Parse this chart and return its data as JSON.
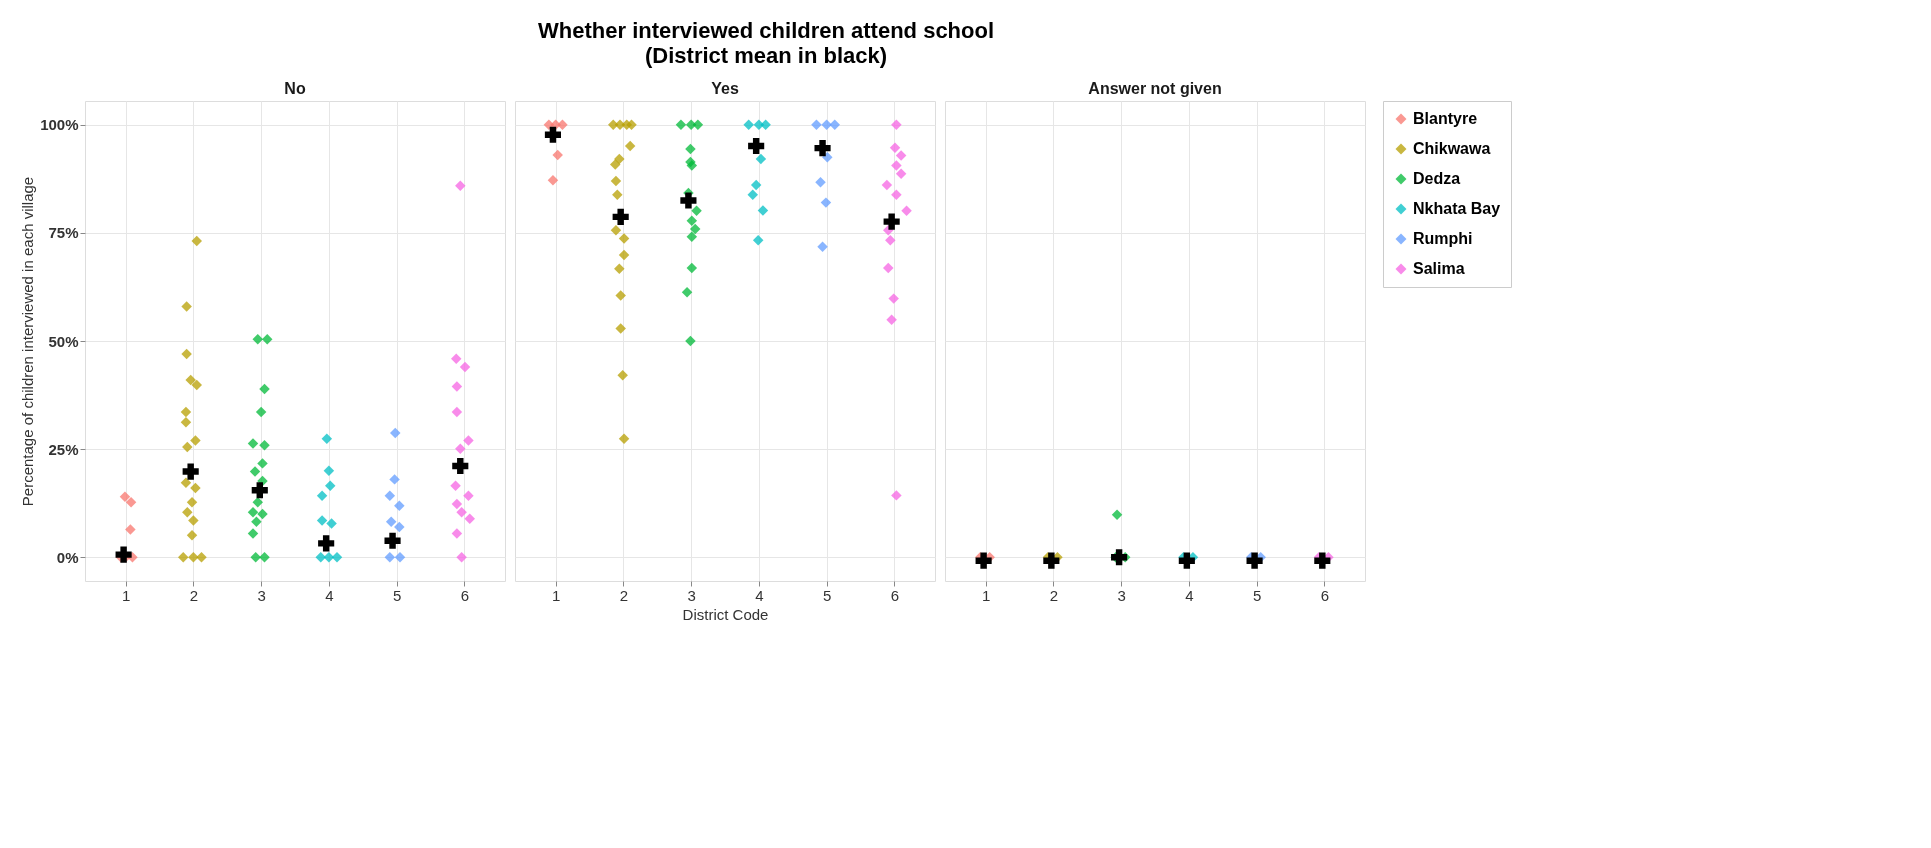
{
  "chart_data": [
    {
      "type": "scatter",
      "title": "No",
      "annotations": [
        "Whether interviewed children attend school",
        "(District mean in black)"
      ],
      "ylabel": "Percentage of children interviewed in each village",
      "marker": "diamond",
      "grid": true,
      "xlim": [
        0.4,
        6.6
      ],
      "xticks": [
        1,
        2,
        3,
        4,
        5,
        6
      ],
      "ylim": [
        -5.5,
        105.5
      ],
      "yticks": [
        {
          "value": 0,
          "label": "0%"
        },
        {
          "value": 25,
          "label": "25%"
        },
        {
          "value": 50,
          "label": "50%"
        },
        {
          "value": 75,
          "label": "75%"
        },
        {
          "value": 100,
          "label": "100%"
        }
      ],
      "series": [
        {
          "color": "#f8766d",
          "x": [
            0.99,
            1.08,
            1.07,
            0.93,
            1.0,
            1.1
          ],
          "values": [
            14,
            12.7,
            6.4,
            0,
            0,
            0
          ]
        },
        {
          "color": "#b79f00",
          "x": [
            2.05,
            1.9,
            1.9,
            1.96,
            2.05,
            1.89,
            1.89,
            2.03,
            1.91,
            1.89,
            2.03,
            1.98,
            1.91,
            2.0,
            1.98,
            1.85,
            2.0,
            2.12
          ],
          "values": [
            73.1,
            58,
            47,
            41,
            39.8,
            33.6,
            31.2,
            27,
            25.5,
            17.2,
            16,
            12.7,
            10.4,
            8.5,
            5.1,
            0,
            0,
            0
          ]
        },
        {
          "color": "#00ba38",
          "x": [
            2.95,
            3.09,
            3.05,
            3.0,
            2.88,
            3.05,
            3.02,
            2.91,
            3.02,
            2.95,
            2.88,
            3.02,
            2.93,
            2.88,
            2.92,
            3.05
          ],
          "values": [
            50.4,
            50.4,
            38.9,
            33.6,
            26.3,
            25.9,
            21.7,
            19.8,
            17.6,
            12.7,
            10.4,
            10,
            8.2,
            5.5,
            0,
            0
          ]
        },
        {
          "color": "#00bfc4",
          "x": [
            3.97,
            4.0,
            4.02,
            3.9,
            3.9,
            4.04,
            3.88,
            4.0,
            4.12
          ],
          "values": [
            27.4,
            20,
            16.5,
            14.2,
            8.5,
            7.8,
            0,
            0,
            0
          ]
        },
        {
          "color": "#619cff",
          "x": [
            4.98,
            4.97,
            4.9,
            5.04,
            4.92,
            5.04,
            4.9,
            5.05
          ],
          "values": [
            28.7,
            18,
            14.2,
            11.9,
            8.2,
            7,
            0,
            0
          ]
        },
        {
          "color": "#f564e3",
          "x": [
            5.94,
            5.88,
            6.01,
            5.89,
            5.89,
            6.06,
            5.94,
            5.87,
            6.06,
            5.89,
            5.96,
            6.08,
            5.89,
            5.96
          ],
          "values": [
            85.9,
            45.9,
            44,
            39.5,
            33.6,
            27,
            25.1,
            16.5,
            14.2,
            12.3,
            10.4,
            8.9,
            5.5,
            0
          ]
        },
        {
          "color": "#000000",
          "marker": "cross",
          "x": [
            0.97,
            1.96,
            2.98,
            3.96,
            4.94,
            5.94
          ],
          "values": [
            0.6,
            19.8,
            15.5,
            3.2,
            3.8,
            21.1
          ]
        }
      ]
    },
    {
      "type": "scatter",
      "title": "Yes",
      "xlabel": "District Code",
      "marker": "diamond",
      "grid": true,
      "tick_labels": "x",
      "xlim": [
        0.4,
        6.6
      ],
      "xticks": [
        1,
        2,
        3,
        4,
        5,
        6
      ],
      "ylim": [
        -5.5,
        105.5
      ],
      "yticks": [
        {
          "value": 0,
          "label": null
        },
        {
          "value": 25,
          "label": null
        },
        {
          "value": 50,
          "label": null
        },
        {
          "value": 75,
          "label": null
        },
        {
          "value": 100,
          "label": null
        }
      ],
      "series": [
        {
          "color": "#f8766d",
          "x": [
            0.9,
            1.0,
            1.1,
            1.03,
            0.96
          ],
          "values": [
            100,
            100,
            100,
            93,
            87.2
          ]
        },
        {
          "color": "#b79f00",
          "x": [
            1.85,
            1.95,
            2.05,
            2.12,
            2.1,
            1.94,
            1.88,
            1.89,
            1.91,
            1.89,
            2.01,
            2.01,
            1.94,
            1.96,
            1.96,
            1.99,
            2.01
          ],
          "values": [
            100,
            100,
            100,
            100,
            95.1,
            92.1,
            90.8,
            87,
            83.8,
            75.6,
            73.7,
            69.9,
            66.7,
            60.5,
            52.9,
            42.1,
            27.4
          ]
        },
        {
          "color": "#00ba38",
          "x": [
            2.85,
            3.0,
            3.1,
            2.99,
            2.99,
            3.01,
            2.96,
            3.08,
            3.01,
            3.06,
            3.01,
            3.01,
            2.94,
            2.99
          ],
          "values": [
            100,
            100,
            100,
            94.4,
            91.4,
            90.6,
            84.2,
            80.1,
            77.8,
            75.9,
            74.1,
            66.9,
            61.3,
            50
          ]
        },
        {
          "color": "#00bfc4",
          "x": [
            3.85,
            4.0,
            4.1,
            4.03,
            3.96,
            3.91,
            4.06,
            3.99
          ],
          "values": [
            100,
            100,
            100,
            92.1,
            86.1,
            83.8,
            80.2,
            73.3
          ]
        },
        {
          "color": "#619cff",
          "x": [
            4.85,
            5.0,
            5.12,
            5.01,
            4.91,
            4.99,
            4.94
          ],
          "values": [
            100,
            100,
            100,
            92.5,
            86.7,
            82,
            71.8
          ]
        },
        {
          "color": "#f564e3",
          "x": [
            6.03,
            6.01,
            6.1,
            6.03,
            6.1,
            5.89,
            6.03,
            6.18,
            5.91,
            5.94,
            5.91,
            5.99,
            5.96,
            6.03
          ],
          "values": [
            100,
            94.7,
            92.9,
            90.6,
            88.7,
            86.1,
            83.8,
            80.1,
            75.6,
            73.3,
            66.9,
            59.8,
            54.9,
            14.3
          ]
        },
        {
          "color": "#000000",
          "marker": "cross",
          "x": [
            0.96,
            1.96,
            2.96,
            3.96,
            4.94,
            5.96
          ],
          "values": [
            97.7,
            78.7,
            82.5,
            95.1,
            94.6,
            77.6
          ]
        }
      ]
    },
    {
      "type": "scatter",
      "title": "Answer not given",
      "marker": "diamond",
      "grid": true,
      "tick_labels": "x",
      "legend": "right",
      "xlim": [
        0.4,
        6.6
      ],
      "xticks": [
        1,
        2,
        3,
        4,
        5,
        6
      ],
      "ylim": [
        -5.5,
        105.5
      ],
      "yticks": [
        {
          "value": 0,
          "label": null
        },
        {
          "value": 25,
          "label": null
        },
        {
          "value": 50,
          "label": null
        },
        {
          "value": 75,
          "label": null
        },
        {
          "value": 100,
          "label": null
        }
      ],
      "series": [
        {
          "name": "Blantyre",
          "color": "#f8766d",
          "x": [
            0.92,
            1.06
          ],
          "values": [
            0,
            0
          ]
        },
        {
          "name": "Chikwawa",
          "color": "#b79f00",
          "x": [
            1.92,
            2.06
          ],
          "values": [
            0,
            0
          ]
        },
        {
          "name": "Dedza",
          "color": "#00ba38",
          "x": [
            2.94,
            2.92,
            3.06
          ],
          "values": [
            9.8,
            0,
            0
          ]
        },
        {
          "name": "Nkhata Bay",
          "color": "#00bfc4",
          "x": [
            3.92,
            4.06
          ],
          "values": [
            0,
            0
          ]
        },
        {
          "name": "Rumphi",
          "color": "#619cff",
          "x": [
            4.92,
            5.06
          ],
          "values": [
            0,
            0
          ]
        },
        {
          "name": "Salima",
          "color": "#f564e3",
          "x": [
            5.92,
            6.06
          ],
          "values": [
            0,
            0
          ]
        },
        {
          "color": "#000000",
          "marker": "cross",
          "x": [
            0.97,
            1.97,
            2.97,
            3.97,
            4.97,
            5.97
          ],
          "values": [
            -0.8,
            -0.8,
            0,
            -0.8,
            -0.8,
            -0.8
          ]
        }
      ]
    }
  ]
}
